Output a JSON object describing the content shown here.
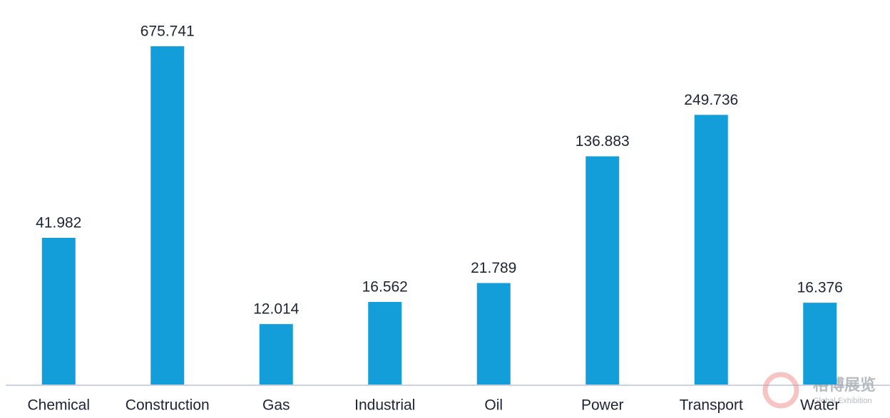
{
  "chart_data": {
    "type": "bar",
    "categories": [
      "Chemical",
      "Construction",
      "Gas",
      "Industrial",
      "Oil",
      "Power",
      "Transport",
      "Water"
    ],
    "values": [
      41.982,
      675.741,
      12.014,
      16.562,
      21.789,
      136.883,
      249.736,
      16.376
    ],
    "color": "#139dd9",
    "log_scale": true,
    "ylim": [
      5,
      1000
    ]
  },
  "watermark": {
    "title": "格博展览",
    "subtitle": "Global Exhibition"
  }
}
